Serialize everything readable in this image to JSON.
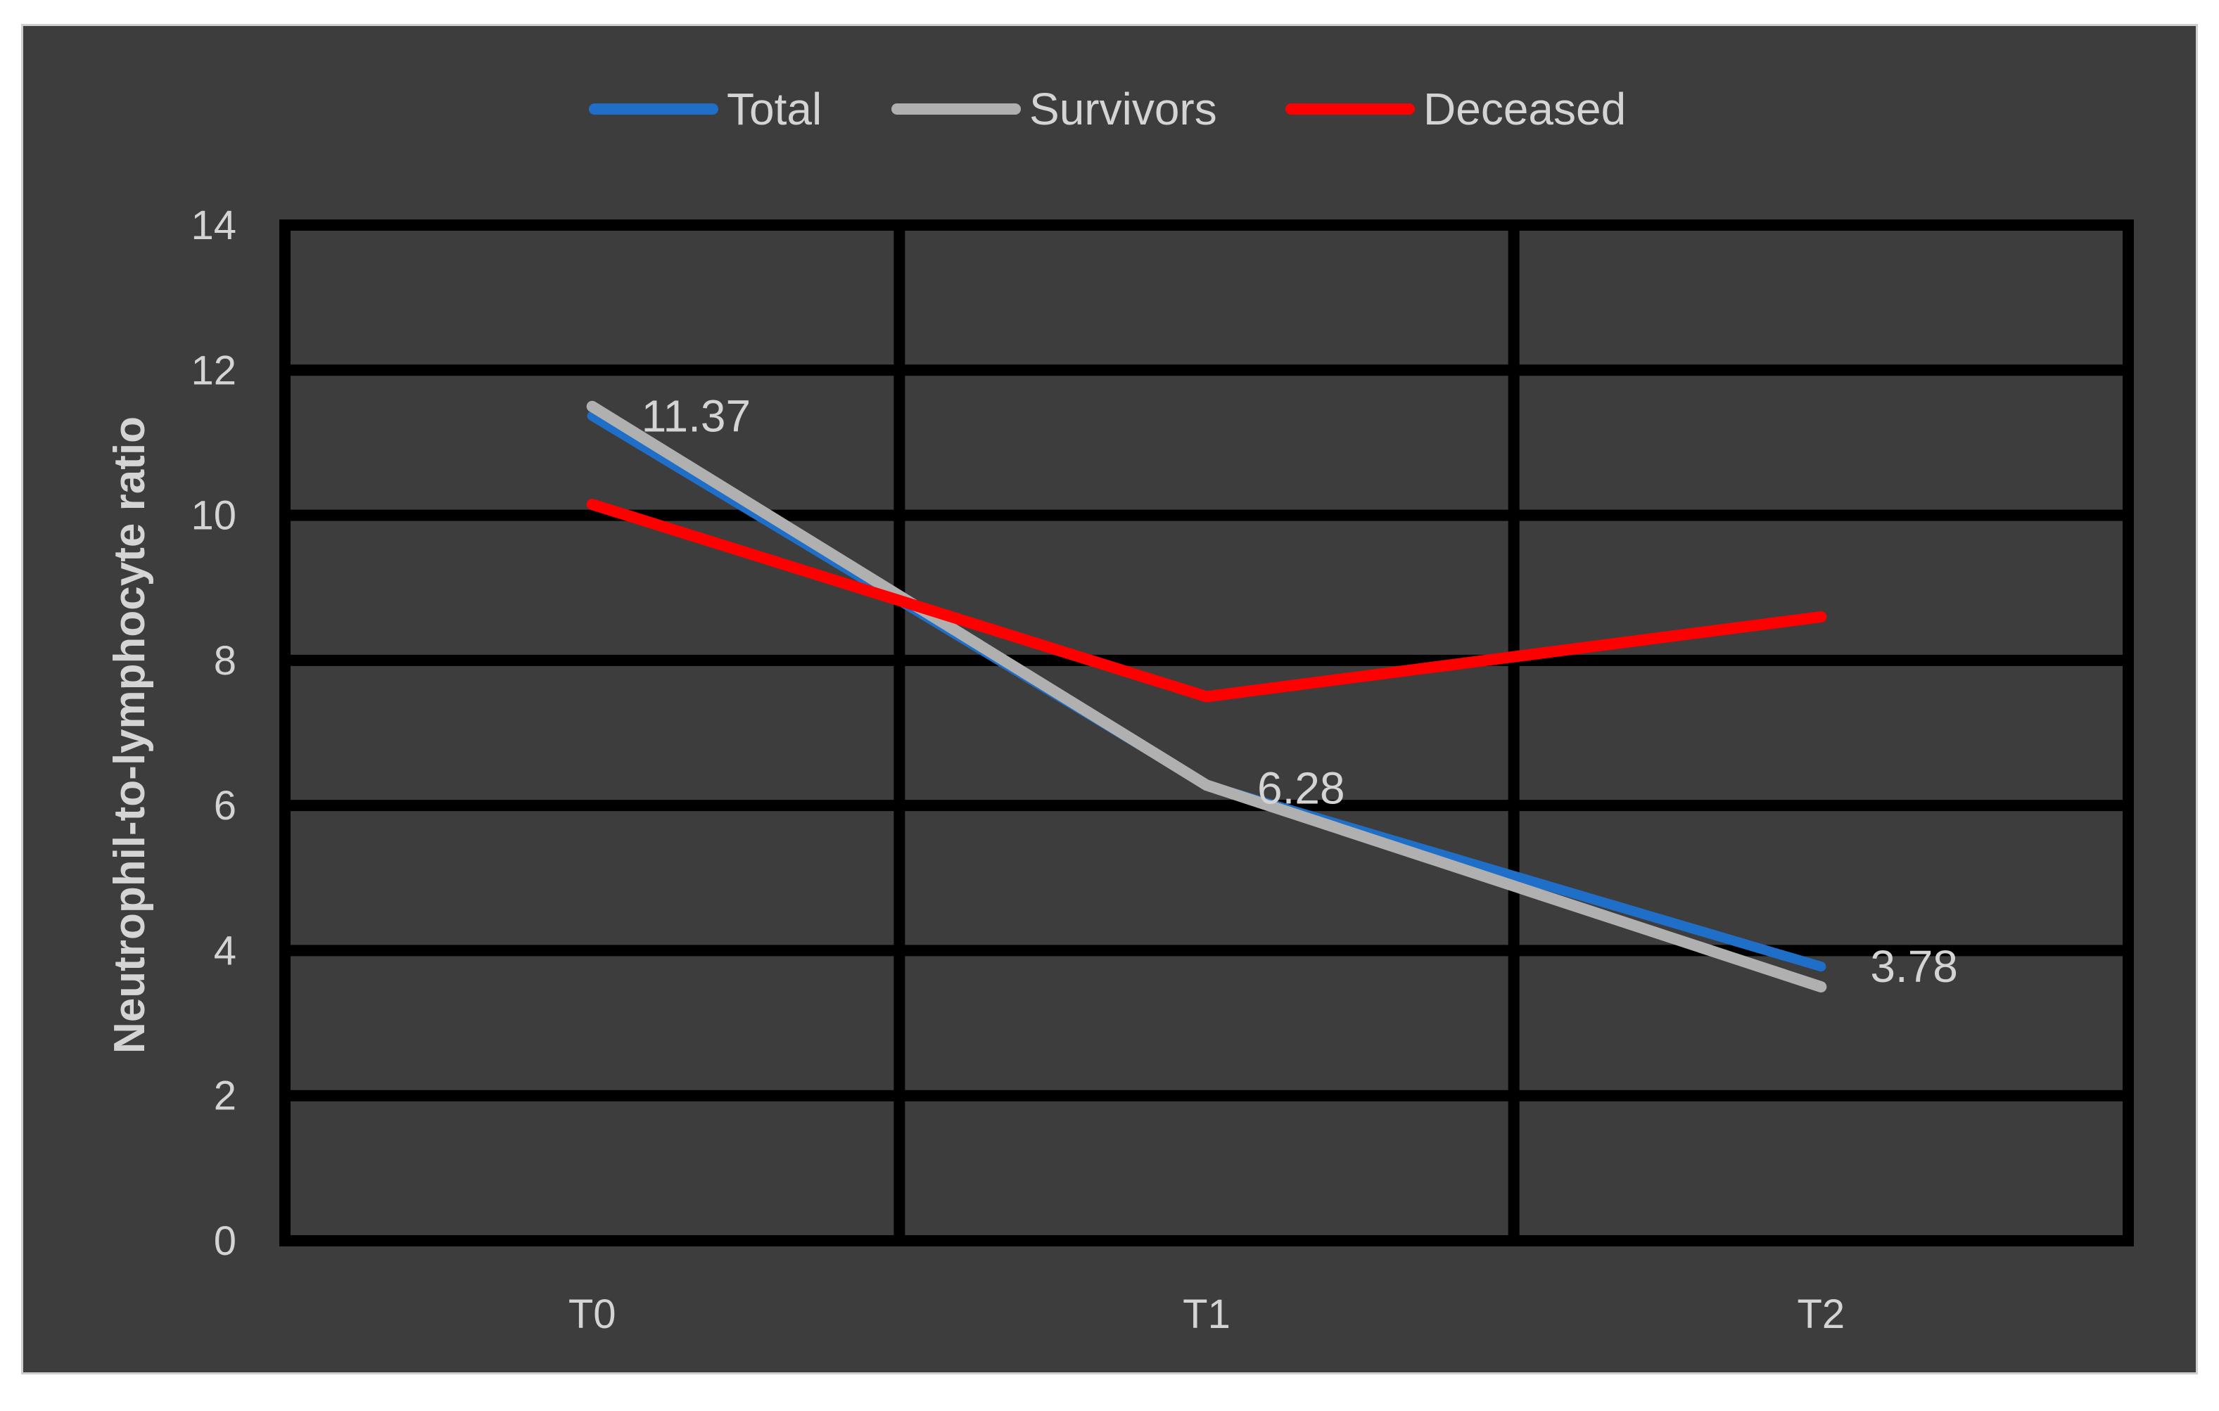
{
  "chart_data": {
    "type": "line",
    "categories": [
      "T0",
      "T1",
      "T2"
    ],
    "ylabel": "Neutrophil-to-lymphocyte ratio",
    "xlabel": "",
    "ylim": [
      0,
      14
    ],
    "yticks": [
      0,
      2,
      4,
      6,
      8,
      10,
      12,
      14
    ],
    "grid": true,
    "legend_position": "top",
    "series": [
      {
        "name": "Total",
        "color": "#1f6fc9",
        "values": [
          11.37,
          6.28,
          3.78
        ]
      },
      {
        "name": "Survivors",
        "color": "#b0b0b0",
        "values": [
          11.5,
          6.28,
          3.5
        ]
      },
      {
        "name": "Deceased",
        "color": "#ff0000",
        "values": [
          10.15,
          7.5,
          8.6
        ]
      }
    ],
    "data_labels": [
      {
        "series": "Total",
        "category": "T0",
        "text": "11.37"
      },
      {
        "series": "Total",
        "category": "T1",
        "text": "6.28"
      },
      {
        "series": "Total",
        "category": "T2",
        "text": "3.78"
      }
    ]
  }
}
